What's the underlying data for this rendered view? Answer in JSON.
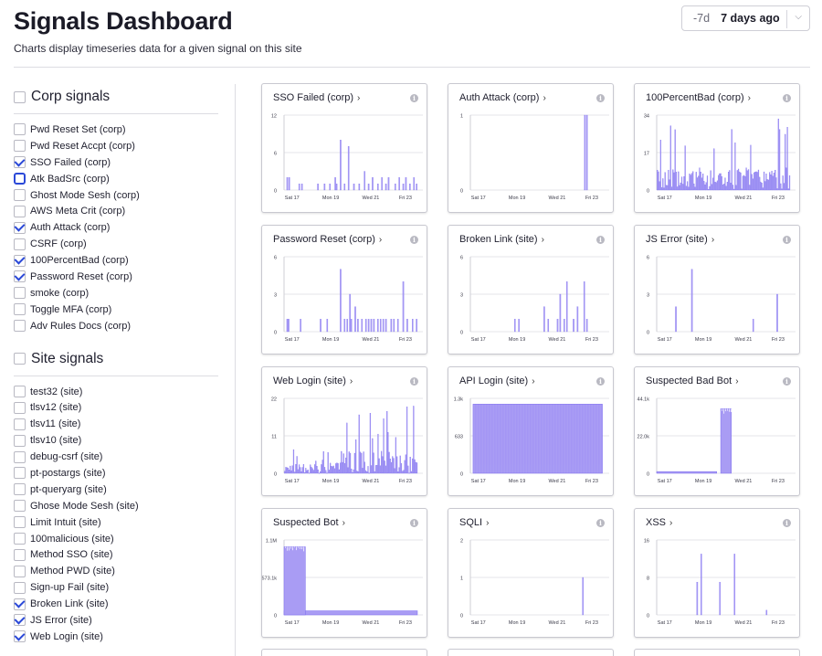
{
  "header": {
    "title": "Signals Dashboard",
    "subtitle": "Charts display timeseries data for a given signal on this site",
    "range_short": "-7d",
    "range_label": "7 days ago"
  },
  "sidebar": {
    "corp_title": "Corp signals",
    "site_title": "Site signals",
    "corp_signals": [
      {
        "label": "Pwd Reset Set (corp)",
        "checked": false
      },
      {
        "label": "Pwd Reset Accpt (corp)",
        "checked": false
      },
      {
        "label": "SSO Failed (corp)",
        "checked": true
      },
      {
        "label": "Atk BadSrc (corp)",
        "checked": false,
        "focused": true
      },
      {
        "label": "Ghost Mode Sesh (corp)",
        "checked": false
      },
      {
        "label": "AWS Meta Crit (corp)",
        "checked": false
      },
      {
        "label": "Auth Attack (corp)",
        "checked": true
      },
      {
        "label": "CSRF (corp)",
        "checked": false
      },
      {
        "label": "100PercentBad (corp)",
        "checked": true
      },
      {
        "label": "Password Reset (corp)",
        "checked": true
      },
      {
        "label": "smoke (corp)",
        "checked": false
      },
      {
        "label": "Toggle MFA (corp)",
        "checked": false
      },
      {
        "label": "Adv Rules Docs (corp)",
        "checked": false
      }
    ],
    "site_signals": [
      {
        "label": "test32 (site)",
        "checked": false
      },
      {
        "label": "tlsv12 (site)",
        "checked": false
      },
      {
        "label": "tlsv11 (site)",
        "checked": false
      },
      {
        "label": "tlsv10 (site)",
        "checked": false
      },
      {
        "label": "debug-csrf (site)",
        "checked": false
      },
      {
        "label": "pt-postargs (site)",
        "checked": false
      },
      {
        "label": "pt-queryarg (site)",
        "checked": false
      },
      {
        "label": "Ghose Mode Sesh (site)",
        "checked": false
      },
      {
        "label": "Limit Intuit (site)",
        "checked": false
      },
      {
        "label": "100malicious (site)",
        "checked": false
      },
      {
        "label": "Method SSO (site)",
        "checked": false
      },
      {
        "label": "Method PWD (site)",
        "checked": false
      },
      {
        "label": "Sign-up Fail (site)",
        "checked": false
      },
      {
        "label": "Broken Link (site)",
        "checked": true
      },
      {
        "label": "JS Error (site)",
        "checked": true
      },
      {
        "label": "Web Login (site)",
        "checked": true
      }
    ]
  },
  "colors": {
    "bar": "#a99cf4",
    "bar_edge": "#7d6ef0",
    "accent": "#2b49d8",
    "grid": "#e4e4ea"
  },
  "x_ticks": [
    "Sat 17",
    "Mon 19",
    "Wed 21",
    "Fri 23"
  ],
  "chart_data": [
    {
      "type": "bar",
      "title": "SSO Failed (corp)",
      "y_ticks": [
        "12",
        "6",
        "0"
      ],
      "ylim": [
        0,
        12
      ],
      "spikes": [
        [
          0.02,
          2
        ],
        [
          0.035,
          2
        ],
        [
          0.11,
          1
        ],
        [
          0.13,
          1
        ],
        [
          0.25,
          1
        ],
        [
          0.3,
          1
        ],
        [
          0.34,
          1
        ],
        [
          0.38,
          2
        ],
        [
          0.39,
          1
        ],
        [
          0.42,
          8
        ],
        [
          0.45,
          1
        ],
        [
          0.48,
          7
        ],
        [
          0.52,
          1
        ],
        [
          0.56,
          1
        ],
        [
          0.6,
          3
        ],
        [
          0.63,
          1
        ],
        [
          0.66,
          2
        ],
        [
          0.7,
          1
        ],
        [
          0.73,
          2
        ],
        [
          0.76,
          1
        ],
        [
          0.78,
          2
        ],
        [
          0.83,
          1
        ],
        [
          0.86,
          2
        ],
        [
          0.89,
          1
        ],
        [
          0.91,
          2
        ],
        [
          0.94,
          1
        ],
        [
          0.97,
          2
        ],
        [
          0.99,
          1
        ]
      ]
    },
    {
      "type": "bar",
      "title": "Auth Attack (corp)",
      "y_ticks": [
        "1",
        "0"
      ],
      "ylim": [
        0,
        1
      ],
      "spikes": [
        [
          0.855,
          1
        ],
        [
          0.87,
          1
        ]
      ]
    },
    {
      "type": "bar",
      "title": "100PercentBad (corp)",
      "y_ticks": [
        "34",
        "17",
        "0"
      ],
      "ylim": [
        0,
        34
      ],
      "dense": true
    },
    {
      "type": "bar",
      "title": "Password Reset (corp)",
      "y_ticks": [
        "6",
        "3",
        "0"
      ],
      "ylim": [
        0,
        6
      ],
      "spikes": [
        [
          0.02,
          1
        ],
        [
          0.03,
          1
        ],
        [
          0.12,
          1
        ],
        [
          0.27,
          1
        ],
        [
          0.32,
          1
        ],
        [
          0.42,
          5
        ],
        [
          0.45,
          1
        ],
        [
          0.47,
          1
        ],
        [
          0.49,
          3
        ],
        [
          0.5,
          1
        ],
        [
          0.53,
          2
        ],
        [
          0.55,
          1
        ],
        [
          0.58,
          1
        ],
        [
          0.61,
          1
        ],
        [
          0.63,
          1
        ],
        [
          0.65,
          1
        ],
        [
          0.67,
          1
        ],
        [
          0.7,
          1
        ],
        [
          0.72,
          1
        ],
        [
          0.74,
          1
        ],
        [
          0.76,
          1
        ],
        [
          0.8,
          1
        ],
        [
          0.82,
          1
        ],
        [
          0.85,
          1
        ],
        [
          0.89,
          4
        ],
        [
          0.92,
          1
        ],
        [
          0.96,
          1
        ],
        [
          0.99,
          1
        ]
      ]
    },
    {
      "type": "bar",
      "title": "Broken Link (site)",
      "y_ticks": [
        "6",
        "3",
        "0"
      ],
      "ylim": [
        0,
        6
      ],
      "spikes": [
        [
          0.33,
          1
        ],
        [
          0.36,
          1
        ],
        [
          0.55,
          2
        ],
        [
          0.58,
          1
        ],
        [
          0.65,
          1
        ],
        [
          0.67,
          3
        ],
        [
          0.7,
          1
        ],
        [
          0.72,
          4
        ],
        [
          0.77,
          1
        ],
        [
          0.8,
          2
        ],
        [
          0.85,
          4
        ],
        [
          0.87,
          1
        ]
      ]
    },
    {
      "type": "bar",
      "title": "JS Error (site)",
      "y_ticks": [
        "6",
        "3",
        "0"
      ],
      "ylim": [
        0,
        6
      ],
      "spikes": [
        [
          0.14,
          2
        ],
        [
          0.26,
          5
        ],
        [
          0.72,
          1
        ],
        [
          0.9,
          3
        ]
      ]
    },
    {
      "type": "bar",
      "title": "Web Login (site)",
      "y_ticks": [
        "22",
        "11",
        "0"
      ],
      "ylim": [
        0,
        22
      ],
      "dense": true
    },
    {
      "type": "bar",
      "title": "API Login (site)",
      "y_ticks": [
        "1.3k",
        "633",
        "0"
      ],
      "ylim": [
        0,
        1300
      ],
      "plateau": {
        "from": 0.02,
        "to": 0.99,
        "value": 1200
      }
    },
    {
      "type": "bar",
      "title": "Suspected Bad Bot",
      "y_ticks": [
        "44.1k",
        "22.0k",
        "0"
      ],
      "ylim": [
        0,
        44100
      ],
      "step": {
        "low": 1000,
        "lowTo": 0.45,
        "highFrom": 0.48,
        "highTo": 0.56,
        "high": 38000
      }
    },
    {
      "type": "bar",
      "title": "Suspected Bot",
      "y_ticks": [
        "1.1M",
        "573.1k",
        "0"
      ],
      "ylim": [
        0,
        1100000
      ],
      "step": {
        "low": 60000,
        "lowTo": 1.0,
        "highFrom": 0.0,
        "highTo": 0.16,
        "high": 1000000
      }
    },
    {
      "type": "bar",
      "title": "SQLI",
      "y_ticks": [
        "2",
        "1",
        "0"
      ],
      "ylim": [
        0,
        2
      ],
      "spikes": [
        [
          0.84,
          1
        ]
      ]
    },
    {
      "type": "bar",
      "title": "XSS",
      "y_ticks": [
        "16",
        "8",
        "0"
      ],
      "ylim": [
        0,
        16
      ],
      "spikes": [
        [
          0.3,
          7
        ],
        [
          0.33,
          13
        ],
        [
          0.47,
          7
        ],
        [
          0.58,
          13
        ],
        [
          0.82,
          1
        ]
      ]
    }
  ]
}
